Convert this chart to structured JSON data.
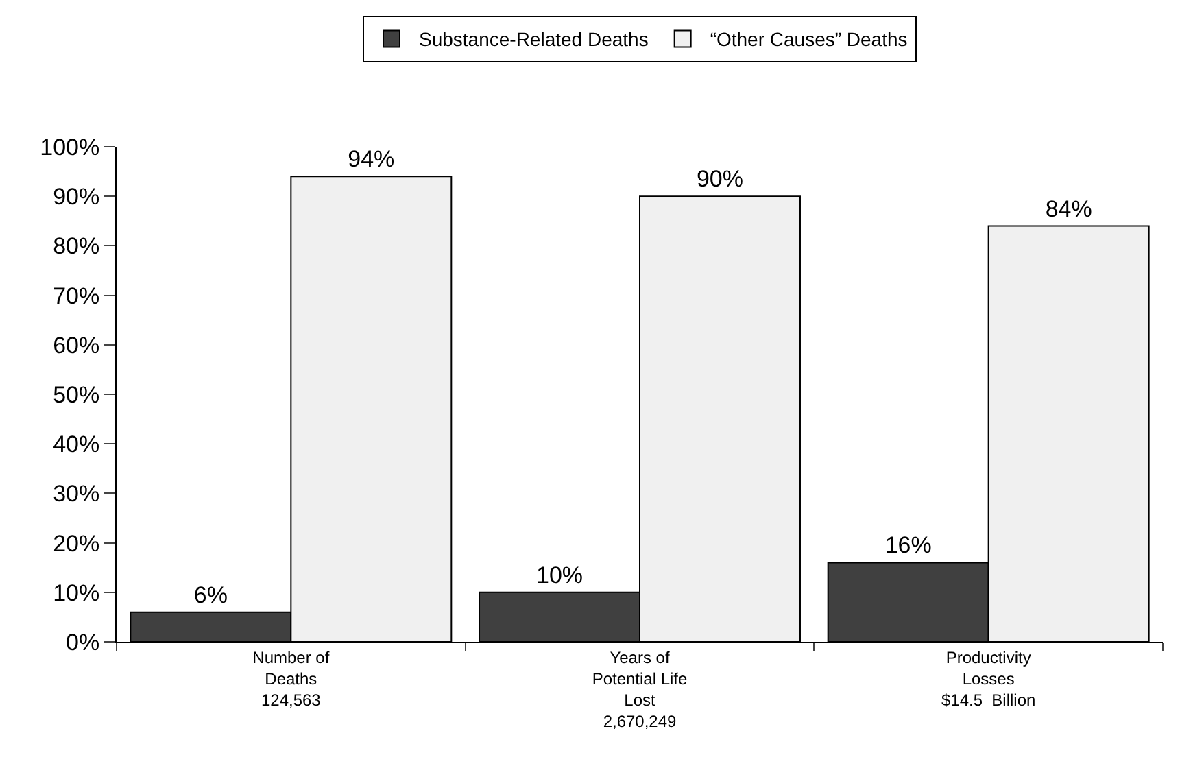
{
  "chart_data": {
    "type": "bar",
    "categories": [
      "Number of\nDeaths\n124,563",
      "Years of\nPotential Life\nLost\n2,670,249",
      "Productivity\nLosses\n$14.5  Billion"
    ],
    "series": [
      {
        "name": "Substance-Related Deaths",
        "color": "#404040",
        "values": [
          6,
          10,
          16
        ],
        "value_labels": [
          "6%",
          "10%",
          "16%"
        ]
      },
      {
        "name": "“Other Causes” Deaths",
        "color": "#f0f0f0",
        "values": [
          94,
          90,
          84
        ],
        "value_labels": [
          "94%",
          "90%",
          "84%"
        ]
      }
    ],
    "ylim": [
      0,
      100
    ],
    "yticks": [
      {
        "value": 0,
        "label": "0%"
      },
      {
        "value": 10,
        "label": "10%"
      },
      {
        "value": 20,
        "label": "20%"
      },
      {
        "value": 30,
        "label": "30%"
      },
      {
        "value": 40,
        "label": "40%"
      },
      {
        "value": 50,
        "label": "50%"
      },
      {
        "value": 60,
        "label": "60%"
      },
      {
        "value": 70,
        "label": "70%"
      },
      {
        "value": 80,
        "label": "80%"
      },
      {
        "value": 90,
        "label": "90%"
      },
      {
        "value": 100,
        "label": "100%"
      }
    ],
    "legend": "top"
  }
}
